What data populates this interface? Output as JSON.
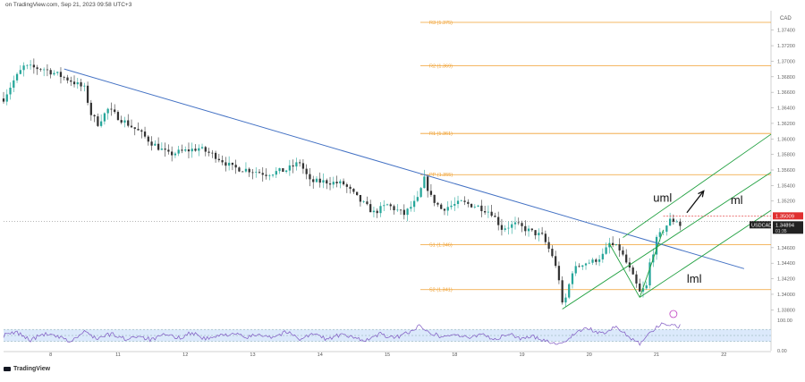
{
  "header_text": "on TradingView.com, Sep 21, 2023 09:58 UTC+3",
  "brand": "TradingView",
  "currency": "CAD",
  "colors": {
    "bull": "#26a69a",
    "bear": "#333333",
    "trendline": "#4472c4",
    "channel": "#20a040",
    "pivot": "#f0a030",
    "price_bg": "#e03030",
    "symbol_bg": "#222222",
    "rsi_line": "#7e57c2",
    "rsi_band": "#dbe9fb",
    "hline": "#8a8a8a"
  },
  "chart_data": {
    "type": "candlestick",
    "symbol_label": "USDCAD",
    "current_price": {
      "value": 1.34894,
      "label": "1.34894",
      "countdown": "01:35"
    },
    "high_marker": {
      "value": 1.35009,
      "label": "1.35009"
    },
    "ylim": [
      1.337,
      1.3765
    ],
    "y_ticks": [
      {
        "value": 1.374,
        "label": "1.37400"
      },
      {
        "value": 1.372,
        "label": "1.37200"
      },
      {
        "value": 1.37,
        "label": "1.37000"
      },
      {
        "value": 1.368,
        "label": "1.36800"
      },
      {
        "value": 1.366,
        "label": "1.36600"
      },
      {
        "value": 1.364,
        "label": "1.36400"
      },
      {
        "value": 1.362,
        "label": "1.36200"
      },
      {
        "value": 1.36,
        "label": "1.36000"
      },
      {
        "value": 1.358,
        "label": "1.35800"
      },
      {
        "value": 1.356,
        "label": "1.35600"
      },
      {
        "value": 1.354,
        "label": "1.35400"
      },
      {
        "value": 1.352,
        "label": "1.35200"
      },
      {
        "value": 1.346,
        "label": "1.34600"
      },
      {
        "value": 1.344,
        "label": "1.34400"
      },
      {
        "value": 1.342,
        "label": "1.34200"
      },
      {
        "value": 1.34,
        "label": "1.34000"
      },
      {
        "value": 1.338,
        "label": "1.33800"
      }
    ],
    "x_range": [
      0,
      228
    ],
    "x_ticks": [
      {
        "x": 14,
        "label": "8"
      },
      {
        "x": 34,
        "label": "11"
      },
      {
        "x": 54,
        "label": "12"
      },
      {
        "x": 74,
        "label": "13"
      },
      {
        "x": 94,
        "label": "14"
      },
      {
        "x": 114,
        "label": "15"
      },
      {
        "x": 134,
        "label": "18"
      },
      {
        "x": 154,
        "label": "19"
      },
      {
        "x": 174,
        "label": "20"
      },
      {
        "x": 194,
        "label": "21"
      },
      {
        "x": 214,
        "label": "22"
      }
    ],
    "pivots": [
      {
        "name": "R3",
        "label": "R3 (1.375)",
        "value": 1.375
      },
      {
        "name": "R2",
        "label": "R2 (1.369)",
        "value": 1.3694
      },
      {
        "name": "R1",
        "label": "R1 (1.361)",
        "value": 1.3607
      },
      {
        "name": "PP",
        "label": "PP (1.355)",
        "value": 1.3554
      },
      {
        "name": "S1",
        "label": "S1 (1.346)",
        "value": 1.3464
      },
      {
        "name": "S2",
        "label": "S2 (1.341)",
        "value": 1.3406
      }
    ],
    "reference_line": 1.3494,
    "trendline": [
      {
        "x": 18,
        "y": 1.369
      },
      {
        "x": 220,
        "y": 1.3433
      }
    ],
    "channel": {
      "upper": [
        {
          "x": 184,
          "y": 1.3473
        },
        {
          "x": 228,
          "y": 1.3606
        }
      ],
      "middle": [
        {
          "x": 166,
          "y": 1.3381
        },
        {
          "x": 228,
          "y": 1.3557
        }
      ],
      "lower": [
        {
          "x": 189,
          "y": 1.3396
        },
        {
          "x": 228,
          "y": 1.3508
        }
      ]
    },
    "pattern_lines": [
      [
        {
          "x": 180,
          "y": 1.3465
        },
        {
          "x": 189,
          "y": 1.3396
        }
      ],
      [
        {
          "x": 189,
          "y": 1.3396
        },
        {
          "x": 196,
          "y": 1.3483
        }
      ]
    ],
    "annotations": [
      {
        "text": "uml",
        "x": 193,
        "y": 1.3519
      },
      {
        "text": "ml",
        "x": 216,
        "y": 1.3516
      },
      {
        "text": "lml",
        "x": 203,
        "y": 1.3415
      }
    ],
    "arrow": {
      "from": {
        "x": 203,
        "y": 1.3505
      },
      "to": {
        "x": 208,
        "y": 1.3533
      }
    },
    "anchors": [
      [
        0,
        1.3652
      ],
      [
        3,
        1.3675
      ],
      [
        6,
        1.3693
      ],
      [
        12,
        1.369
      ],
      [
        16,
        1.3683
      ],
      [
        20,
        1.3675
      ],
      [
        24,
        1.3665
      ],
      [
        26,
        1.3632
      ],
      [
        28,
        1.362
      ],
      [
        31,
        1.3638
      ],
      [
        35,
        1.3625
      ],
      [
        40,
        1.361
      ],
      [
        44,
        1.3595
      ],
      [
        49,
        1.358
      ],
      [
        52,
        1.3583
      ],
      [
        58,
        1.3588
      ],
      [
        63,
        1.3578
      ],
      [
        68,
        1.3563
      ],
      [
        73,
        1.356
      ],
      [
        78,
        1.3555
      ],
      [
        84,
        1.356
      ],
      [
        88,
        1.357
      ],
      [
        91,
        1.3545
      ],
      [
        96,
        1.3545
      ],
      [
        101,
        1.3542
      ],
      [
        106,
        1.352
      ],
      [
        110,
        1.3505
      ],
      [
        114,
        1.3515
      ],
      [
        119,
        1.3503
      ],
      [
        123,
        1.3522
      ],
      [
        125,
        1.3548
      ],
      [
        127,
        1.3525
      ],
      [
        130,
        1.351
      ],
      [
        136,
        1.3518
      ],
      [
        141,
        1.3513
      ],
      [
        145,
        1.3505
      ],
      [
        148,
        1.3485
      ],
      [
        152,
        1.349
      ],
      [
        157,
        1.348
      ],
      [
        160,
        1.3475
      ],
      [
        163,
        1.345
      ],
      [
        165,
        1.342
      ],
      [
        166,
        1.3386
      ],
      [
        167,
        1.3395
      ],
      [
        169,
        1.343
      ],
      [
        172,
        1.344
      ],
      [
        175,
        1.3442
      ],
      [
        178,
        1.345
      ],
      [
        180,
        1.3465
      ],
      [
        183,
        1.3458
      ],
      [
        186,
        1.3432
      ],
      [
        189,
        1.3402
      ],
      [
        191,
        1.341
      ],
      [
        192,
        1.344
      ],
      [
        194,
        1.347
      ],
      [
        196,
        1.3483
      ],
      [
        198,
        1.3495
      ],
      [
        200,
        1.3495
      ],
      [
        201,
        1.3489
      ]
    ],
    "rsi": {
      "ylim": [
        0,
        100
      ],
      "ticks": [
        {
          "value": 100,
          "label": "100.00"
        },
        {
          "value": 0,
          "label": "0.00"
        }
      ],
      "band": [
        30,
        70
      ],
      "anchors": [
        [
          0,
          50
        ],
        [
          4,
          60
        ],
        [
          8,
          35
        ],
        [
          12,
          55
        ],
        [
          16,
          45
        ],
        [
          20,
          30
        ],
        [
          24,
          62
        ],
        [
          28,
          40
        ],
        [
          32,
          55
        ],
        [
          36,
          38
        ],
        [
          40,
          50
        ],
        [
          44,
          35
        ],
        [
          48,
          52
        ],
        [
          52,
          42
        ],
        [
          56,
          60
        ],
        [
          60,
          38
        ],
        [
          64,
          48
        ],
        [
          68,
          58
        ],
        [
          72,
          42
        ],
        [
          76,
          55
        ],
        [
          80,
          45
        ],
        [
          84,
          62
        ],
        [
          88,
          40
        ],
        [
          92,
          55
        ],
        [
          96,
          38
        ],
        [
          100,
          52
        ],
        [
          104,
          42
        ],
        [
          108,
          35
        ],
        [
          112,
          55
        ],
        [
          116,
          40
        ],
        [
          120,
          60
        ],
        [
          124,
          82
        ],
        [
          127,
          60
        ],
        [
          130,
          45
        ],
        [
          134,
          55
        ],
        [
          138,
          40
        ],
        [
          142,
          58
        ],
        [
          146,
          35
        ],
        [
          150,
          55
        ],
        [
          154,
          40
        ],
        [
          158,
          45
        ],
        [
          162,
          30
        ],
        [
          166,
          22
        ],
        [
          170,
          62
        ],
        [
          174,
          72
        ],
        [
          178,
          55
        ],
        [
          182,
          78
        ],
        [
          186,
          45
        ],
        [
          189,
          25
        ],
        [
          192,
          60
        ],
        [
          195,
          85
        ],
        [
          198,
          88
        ],
        [
          201,
          80
        ]
      ]
    }
  }
}
